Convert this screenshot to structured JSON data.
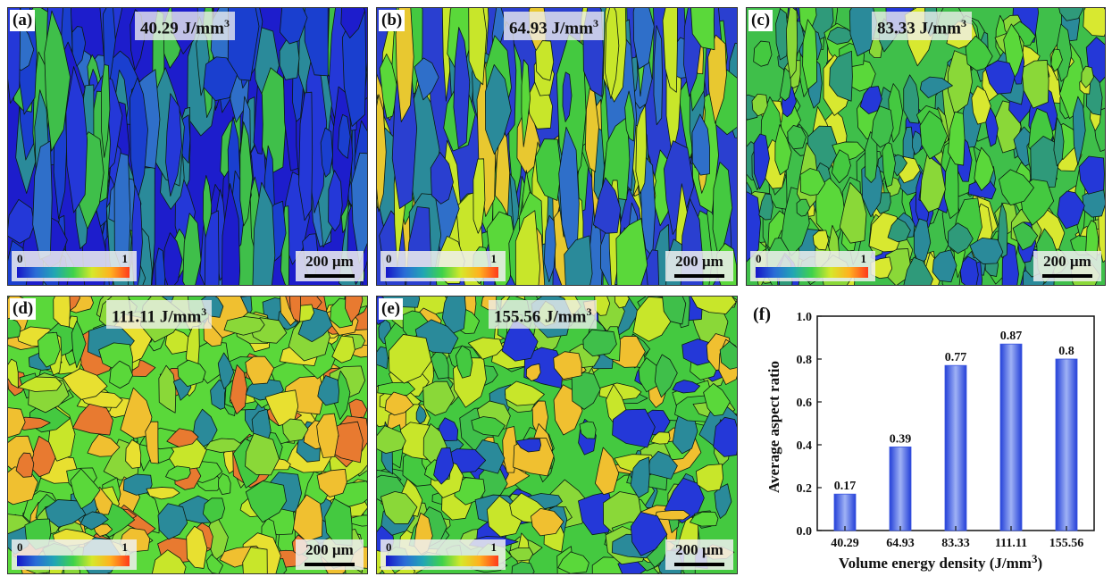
{
  "panels": [
    {
      "id": "a",
      "tag": "(a)",
      "title": "40.29 J/mm",
      "sup": "3",
      "legend_min": "0",
      "legend_max": "1",
      "scale_bar": "200 µm",
      "tone": "blue"
    },
    {
      "id": "b",
      "tag": "(b)",
      "title": "64.93 J/mm",
      "sup": "3",
      "legend_min": "0",
      "legend_max": "1",
      "scale_bar": "200 µm",
      "tone": "mixed"
    },
    {
      "id": "c",
      "tag": "(c)",
      "title": "83.33 J/mm",
      "sup": "3",
      "legend_min": "0",
      "legend_max": "1",
      "scale_bar": "200 µm",
      "tone": "green"
    },
    {
      "id": "d",
      "tag": "(d)",
      "title": "111.11 J/mm",
      "sup": "3",
      "legend_min": "0",
      "legend_max": "1",
      "scale_bar": "200 µm",
      "tone": "yellow"
    },
    {
      "id": "e",
      "tag": "(e)",
      "title": "155.56 J/mm",
      "sup": "3",
      "legend_min": "0",
      "legend_max": "1",
      "scale_bar": "200 µm",
      "tone": "green-yellow"
    }
  ],
  "colors": {
    "blue": [
      "#1d1dcc",
      "#2438d8",
      "#1a3fcf",
      "#2f6fc9",
      "#2a8a9a",
      "#3fbf4a"
    ],
    "mixed": [
      "#2a3fd0",
      "#2f6fc9",
      "#2a8a9a",
      "#44c940",
      "#5ad83a",
      "#c8e62a",
      "#e8c830"
    ],
    "green": [
      "#3fbf4a",
      "#44c940",
      "#5ad83a",
      "#2a8a9a",
      "#2f9a7a",
      "#8ad838",
      "#d8e830",
      "#2438d8"
    ],
    "yellow": [
      "#5ad83a",
      "#8ad838",
      "#c8e62a",
      "#e8e030",
      "#f0c030",
      "#44c940",
      "#2a8a9a",
      "#e87a30"
    ],
    "green-yellow": [
      "#44c940",
      "#5ad83a",
      "#3fbf4a",
      "#2a8a9a",
      "#c8e62a",
      "#f0c030",
      "#8ad838",
      "#2438d8"
    ],
    "bar": "#3a56e0",
    "bar_light": "#9fb2f5"
  },
  "chart_data": {
    "type": "bar",
    "tag": "(f)",
    "categories": [
      "40.29",
      "64.93",
      "83.33",
      "111.11",
      "155.56"
    ],
    "values": [
      0.17,
      0.39,
      0.77,
      0.87,
      0.8
    ],
    "value_labels": [
      "0.17",
      "0.39",
      "0.77",
      "0.87",
      "0.8"
    ],
    "ylabel": "Average aspect ratio",
    "xlabel": "Volume energy density (J/mm",
    "xlabel_sup": "3",
    "xlabel_end": ")",
    "ylim": [
      0,
      1.0
    ],
    "yticks": [
      "0.0",
      "0.2",
      "0.4",
      "0.6",
      "0.8",
      "1.0"
    ],
    "grid": false
  }
}
